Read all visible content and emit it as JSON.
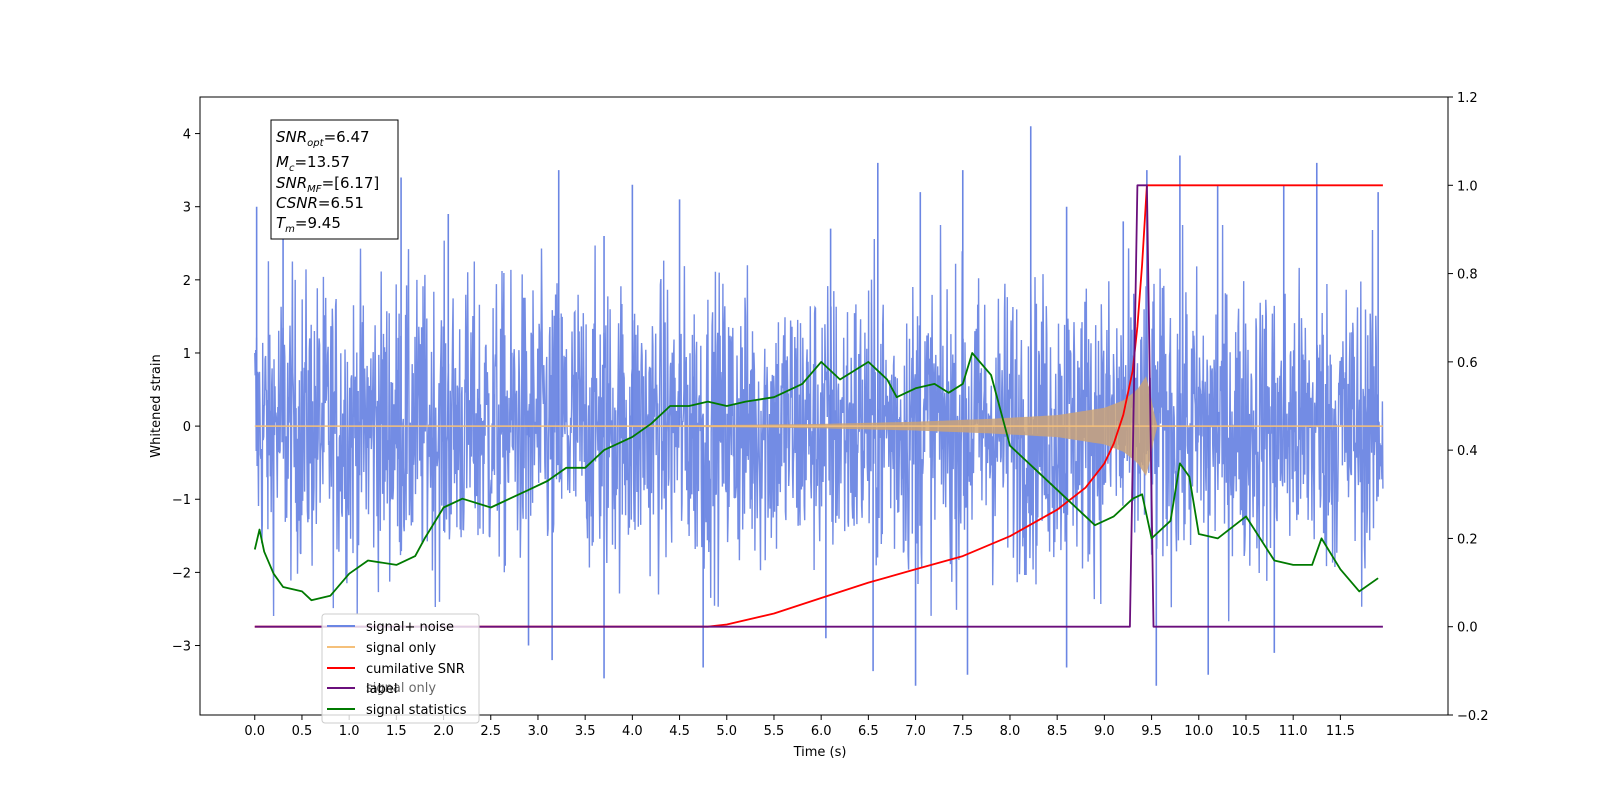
{
  "chart_data": {
    "type": "line",
    "xlabel": "Time (s)",
    "ylabel_left": "Whitened strain",
    "ylabel_right": "",
    "xlim": [
      -0.58,
      12.64
    ],
    "ylim_left": [
      -3.95,
      4.5
    ],
    "ylim_right": [
      -0.2,
      1.2
    ],
    "x_ticks": [
      0.0,
      0.5,
      1.0,
      1.5,
      2.0,
      2.5,
      3.0,
      3.5,
      4.0,
      4.5,
      5.0,
      5.5,
      6.0,
      6.5,
      7.0,
      7.5,
      8.0,
      8.5,
      9.0,
      9.5,
      10.0,
      10.5,
      11.0,
      11.5
    ],
    "x_tick_labels": [
      "0.0",
      "0.5",
      "1.0",
      "1.5",
      "2.0",
      "2.5",
      "3.0",
      "3.5",
      "4.0",
      "4.5",
      "5.0",
      "5.5",
      "6.0",
      "6.5",
      "7.0",
      "7.5",
      "8.0",
      "8.5",
      "9.0",
      "9.5",
      "10.0",
      "10.5",
      "11.0",
      "11.5"
    ],
    "y_left_ticks": [
      -3,
      -2,
      -1,
      0,
      1,
      2,
      3,
      4
    ],
    "y_left_tick_labels": [
      "−3",
      "−2",
      "−1",
      "0",
      "1",
      "2",
      "3",
      "4"
    ],
    "y_right_ticks": [
      -0.2,
      0.0,
      0.2,
      0.4,
      0.6,
      0.8,
      1.0,
      1.2
    ],
    "y_right_tick_labels": [
      "−0.2",
      "0.0",
      "0.2",
      "0.4",
      "0.6",
      "0.8",
      "1.0",
      "1.2"
    ],
    "annotation": {
      "lines": [
        {
          "name": "SNR",
          "sub": "opt",
          "value": "=6.47"
        },
        {
          "name": "M",
          "sub": "c",
          "value": "=13.57"
        },
        {
          "name": "SNR",
          "sub": "MF",
          "value": "=[6.17]"
        },
        {
          "name": "CSNR",
          "sub": "",
          "value": "=6.51"
        },
        {
          "name": "T",
          "sub": "m",
          "value": "=9.45"
        }
      ]
    },
    "legend": {
      "placement": "lower-left",
      "entries": [
        {
          "label": "signal+ noise",
          "color": "#6b86e3"
        },
        {
          "label": "signal only",
          "color": "#f5c07a"
        },
        {
          "label": "cumilative SNR",
          "color": "#ff0000"
        },
        {
          "label": "label",
          "color": "#6a0f7c"
        },
        {
          "label": "signal statistics",
          "color": "#007a00"
        }
      ],
      "hidden_text": "signal only"
    },
    "series": [
      {
        "name": "signal+ noise",
        "axis": "left",
        "color": "#6b86e3",
        "description": "noise band between about -2.7 and +2.7 with spikes up to 4.1 and down to -3.5",
        "spikes": [
          [
            0.02,
            3.0
          ],
          [
            0.3,
            2.7
          ],
          [
            1.55,
            3.4
          ],
          [
            2.05,
            2.9
          ],
          [
            3.22,
            3.5
          ],
          [
            3.7,
            2.6
          ],
          [
            4.0,
            3.3
          ],
          [
            4.5,
            3.1
          ],
          [
            6.1,
            2.7
          ],
          [
            6.6,
            3.6
          ],
          [
            7.05,
            3.2
          ],
          [
            7.5,
            3.5
          ],
          [
            8.22,
            4.1
          ],
          [
            8.6,
            3.0
          ],
          [
            9.2,
            2.8
          ],
          [
            9.45,
            3.5
          ],
          [
            9.8,
            3.7
          ],
          [
            10.2,
            3.3
          ],
          [
            10.9,
            3.3
          ],
          [
            11.25,
            3.6
          ],
          [
            11.9,
            3.2
          ],
          [
            2.9,
            -3.0
          ],
          [
            3.15,
            -3.2
          ],
          [
            3.7,
            -3.45
          ],
          [
            4.75,
            -3.3
          ],
          [
            6.05,
            -2.9
          ],
          [
            6.55,
            -3.35
          ],
          [
            7.0,
            -3.55
          ],
          [
            7.55,
            -3.4
          ],
          [
            8.6,
            -3.3
          ],
          [
            9.55,
            -3.55
          ],
          [
            10.1,
            -3.4
          ],
          [
            10.8,
            -3.1
          ]
        ]
      },
      {
        "name": "signal only",
        "axis": "left",
        "color": "#f5c07a",
        "envelope": {
          "x": [
            0.0,
            4.5,
            6.0,
            7.0,
            7.8,
            8.5,
            9.0,
            9.2,
            9.35,
            9.45,
            9.55,
            11.95
          ],
          "y": [
            0.0,
            0.01,
            0.03,
            0.06,
            0.1,
            0.15,
            0.25,
            0.35,
            0.5,
            0.7,
            0.01,
            0.0
          ]
        }
      },
      {
        "name": "cumilative SNR",
        "axis": "right",
        "color": "#ff0000",
        "x": [
          0.0,
          4.8,
          5.0,
          5.5,
          6.0,
          6.5,
          7.0,
          7.5,
          8.0,
          8.5,
          8.8,
          9.0,
          9.1,
          9.2,
          9.3,
          9.35,
          9.4,
          9.45,
          11.95
        ],
        "y": [
          0.0,
          0.0,
          0.005,
          0.03,
          0.065,
          0.1,
          0.13,
          0.16,
          0.205,
          0.265,
          0.315,
          0.37,
          0.415,
          0.48,
          0.58,
          0.68,
          0.82,
          1.0,
          1.0
        ]
      },
      {
        "name": "label",
        "axis": "right",
        "color": "#6a0f7c",
        "x": [
          0.0,
          9.27,
          9.35,
          9.45,
          9.52,
          11.95
        ],
        "y": [
          0.0,
          0.0,
          1.0,
          1.0,
          0.0,
          0.0
        ]
      },
      {
        "name": "signal statistics",
        "axis": "right",
        "color": "#007a00",
        "x": [
          0.0,
          0.05,
          0.1,
          0.2,
          0.3,
          0.5,
          0.6,
          0.8,
          1.0,
          1.2,
          1.5,
          1.7,
          1.8,
          2.0,
          2.2,
          2.5,
          2.7,
          2.9,
          3.1,
          3.3,
          3.5,
          3.7,
          3.8,
          4.0,
          4.2,
          4.4,
          4.6,
          4.8,
          5.0,
          5.2,
          5.5,
          5.8,
          6.0,
          6.2,
          6.5,
          6.6,
          6.7,
          6.8,
          7.0,
          7.2,
          7.35,
          7.5,
          7.6,
          7.8,
          8.0,
          8.3,
          8.6,
          8.9,
          9.1,
          9.3,
          9.4,
          9.5,
          9.7,
          9.8,
          9.9,
          10.0,
          10.2,
          10.5,
          10.8,
          11.0,
          11.2,
          11.3,
          11.5,
          11.7,
          11.9
        ],
        "y": [
          0.175,
          0.22,
          0.17,
          0.12,
          0.09,
          0.08,
          0.06,
          0.07,
          0.12,
          0.15,
          0.14,
          0.16,
          0.2,
          0.27,
          0.29,
          0.27,
          0.29,
          0.31,
          0.33,
          0.36,
          0.36,
          0.4,
          0.41,
          0.43,
          0.46,
          0.5,
          0.5,
          0.51,
          0.5,
          0.51,
          0.52,
          0.55,
          0.6,
          0.56,
          0.6,
          0.58,
          0.56,
          0.52,
          0.54,
          0.55,
          0.53,
          0.55,
          0.62,
          0.57,
          0.41,
          0.35,
          0.29,
          0.23,
          0.25,
          0.29,
          0.3,
          0.2,
          0.24,
          0.37,
          0.34,
          0.21,
          0.2,
          0.25,
          0.15,
          0.14,
          0.14,
          0.2,
          0.13,
          0.08,
          0.11
        ]
      }
    ]
  }
}
